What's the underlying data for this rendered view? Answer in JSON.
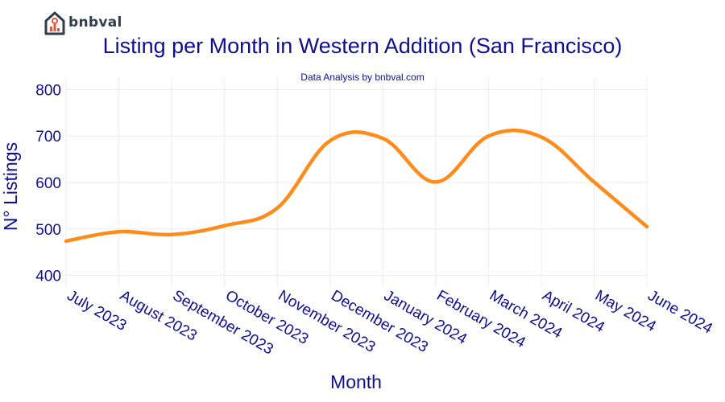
{
  "brand": {
    "name": "bnbval"
  },
  "chart_data": {
    "type": "line",
    "title": "Listing per Month in Western Addition (San Francisco)",
    "subtitle": "Data Analysis by bnbval.com",
    "xlabel": "Month",
    "ylabel": "N° Listings",
    "categories": [
      "July 2023",
      "August 2023",
      "September 2023",
      "October 2023",
      "November 2023",
      "December 2023",
      "January 2024",
      "February 2024",
      "March 2024",
      "April 2024",
      "May 2024",
      "June 2024"
    ],
    "series": [
      {
        "name": "Listings",
        "values": [
          474,
          494,
          488,
          507,
          545,
          690,
          695,
          601,
          700,
          698,
          601,
          505
        ],
        "color": "#ff8c1a"
      }
    ],
    "ylim": [
      375,
      825
    ],
    "yticks": [
      400,
      500,
      600,
      700,
      800
    ],
    "grid": true,
    "colors": {
      "line": "#ff8c1a",
      "text": "#0f0f8f",
      "grid": "#ececec"
    }
  }
}
